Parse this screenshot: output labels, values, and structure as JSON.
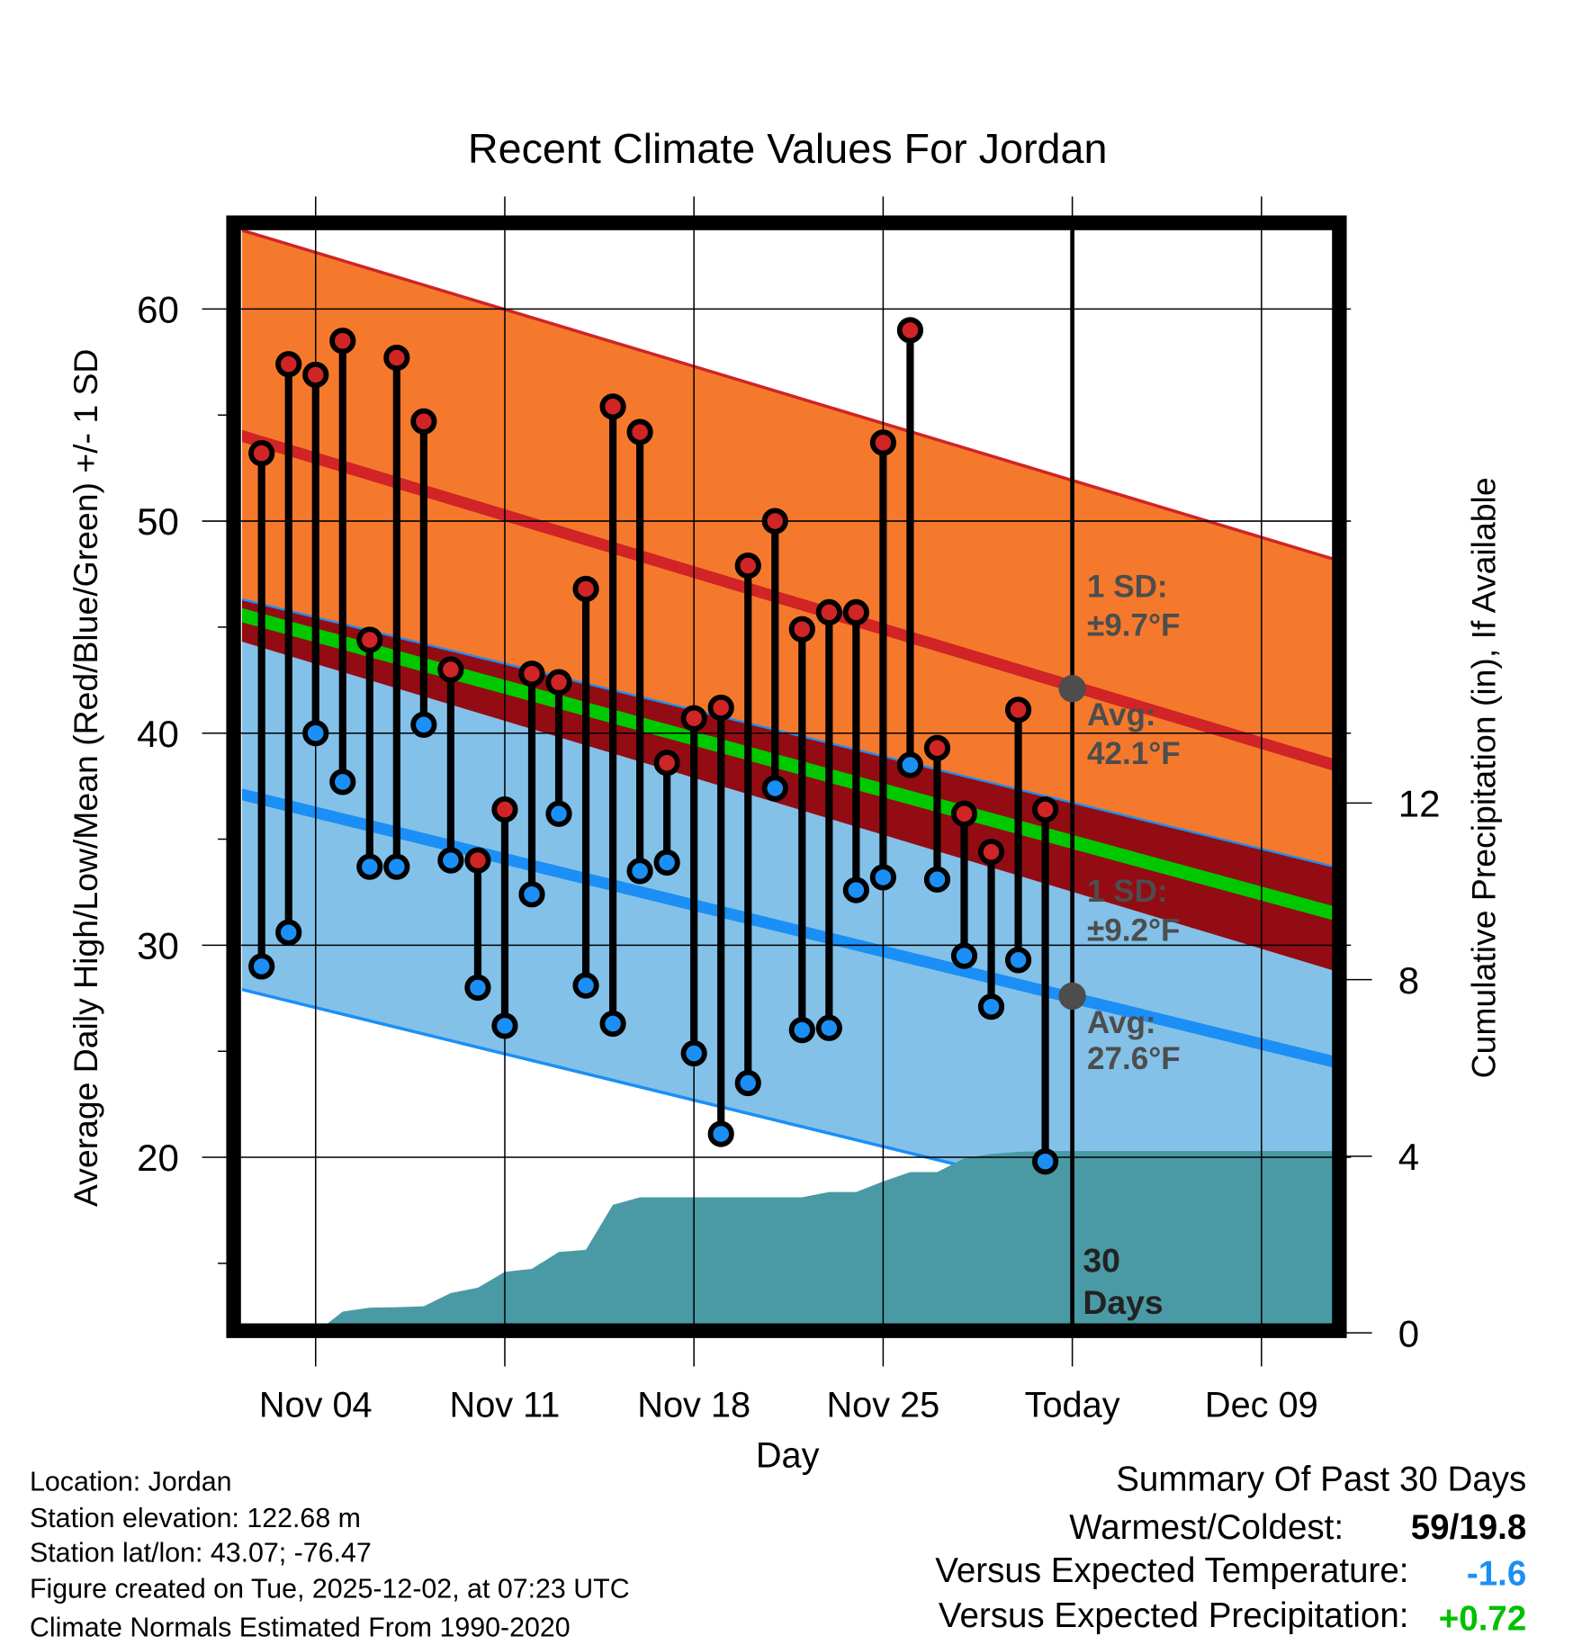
{
  "chart_data": {
    "type": "line",
    "title": "Recent Climate Values For Jordan",
    "xlabel": "Day",
    "ylabel": "Average Daily High/Low/Mean (Red/Blue/Green) +/- 1 SD",
    "y2label": "Cumulative Precipitation (in), If Available",
    "x_day_origin": "Nov 01",
    "xlim_days": [
      0.3,
      40.7
    ],
    "ylim": [
      12.1,
      63.8
    ],
    "y2lim": [
      0,
      12.4
    ],
    "xticks": [
      {
        "day": 3,
        "label": "Nov 04"
      },
      {
        "day": 10,
        "label": "Nov 11"
      },
      {
        "day": 17,
        "label": "Nov 18"
      },
      {
        "day": 24,
        "label": "Nov 25"
      },
      {
        "day": 31,
        "label": "Today"
      },
      {
        "day": 38,
        "label": "Dec 09"
      }
    ],
    "yticks": [
      20,
      30,
      40,
      50,
      60
    ],
    "y2ticks": [
      0,
      4,
      8,
      12
    ],
    "today_day": 31,
    "days": [
      "Nov 02",
      "Nov 03",
      "Nov 04",
      "Nov 05",
      "Nov 06",
      "Nov 07",
      "Nov 08",
      "Nov 09",
      "Nov 10",
      "Nov 11",
      "Nov 12",
      "Nov 13",
      "Nov 14",
      "Nov 15",
      "Nov 16",
      "Nov 17",
      "Nov 18",
      "Nov 19",
      "Nov 20",
      "Nov 21",
      "Nov 22",
      "Nov 23",
      "Nov 24",
      "Nov 25",
      "Nov 26",
      "Nov 27",
      "Nov 28",
      "Nov 29",
      "Nov 30",
      "Dec 01"
    ],
    "day_index_start": 1,
    "highs": [
      53.2,
      57.4,
      56.9,
      58.5,
      44.4,
      57.7,
      54.7,
      43.0,
      34.0,
      36.4,
      42.8,
      42.4,
      46.8,
      55.4,
      54.2,
      38.6,
      40.7,
      41.2,
      47.9,
      50.0,
      44.9,
      45.7,
      45.7,
      53.7,
      59.0,
      39.3,
      36.2,
      34.4,
      41.1,
      36.4
    ],
    "lows": [
      29.0,
      30.6,
      40.0,
      37.7,
      33.7,
      33.7,
      40.4,
      34.0,
      28.0,
      26.2,
      32.4,
      36.2,
      28.1,
      26.3,
      33.5,
      33.9,
      24.9,
      21.1,
      23.5,
      37.4,
      26.0,
      26.1,
      32.6,
      33.2,
      38.5,
      33.1,
      29.5,
      27.1,
      29.3,
      19.8
    ],
    "cumulative_precip": [
      0,
      0,
      0,
      0.48,
      0.57,
      0.58,
      0.6,
      0.9,
      1.02,
      1.38,
      1.45,
      1.83,
      1.88,
      2.9,
      3.07,
      3.07,
      3.07,
      3.07,
      3.07,
      3.07,
      3.07,
      3.19,
      3.19,
      3.43,
      3.64,
      3.64,
      3.95,
      4.05,
      4.1,
      4.12
    ],
    "normals": {
      "mean_high": [
        54.0,
        38.5
      ],
      "mean_low": [
        37.1,
        24.5
      ],
      "high_sd": 9.7,
      "low_sd": 9.2
    },
    "annotations": {
      "high_sd_line1": "1 SD:",
      "high_sd_line2": "±9.7°F",
      "high_avg_line1": "Avg:",
      "high_avg_line2": "42.1°F",
      "high_avg_value": 42.1,
      "low_sd_line1": "1 SD:",
      "low_sd_line2": "±9.2°F",
      "low_avg_line1": "Avg:",
      "low_avg_line2": "27.6°F",
      "low_avg_value": 27.6,
      "days_line1": "30",
      "days_line2": "Days"
    },
    "colors": {
      "high_band": "#f5792c",
      "low_band": "#83c1e8",
      "overlap": "#930c13",
      "high_mean": "#d02426",
      "low_mean": "#1b8ff5",
      "mean": "#00c800",
      "precip": "#4a9aa5",
      "high_dot": "#d02426",
      "low_dot": "#1b8ff5",
      "annotation": "#4d4d4d"
    }
  },
  "footer": {
    "info": [
      "Location: Jordan",
      "Station elevation: 122.68 m",
      "Station lat/lon: 43.07; -76.47",
      "Figure created on Tue, 2025-12-02, at 07:23 UTC",
      "Climate Normals Estimated From 1990-2020"
    ],
    "summary_title": "Summary Of Past 30 Days",
    "warmest_label": "Warmest/Coldest:",
    "warmest_value": "59/19.8",
    "temp_label": "Versus Expected Temperature:",
    "temp_value": "-1.6",
    "precip_label": "Versus Expected Precipitation:",
    "precip_value": "+0.72",
    "temp_color": "#1b8ff5",
    "precip_color": "#00c000"
  }
}
